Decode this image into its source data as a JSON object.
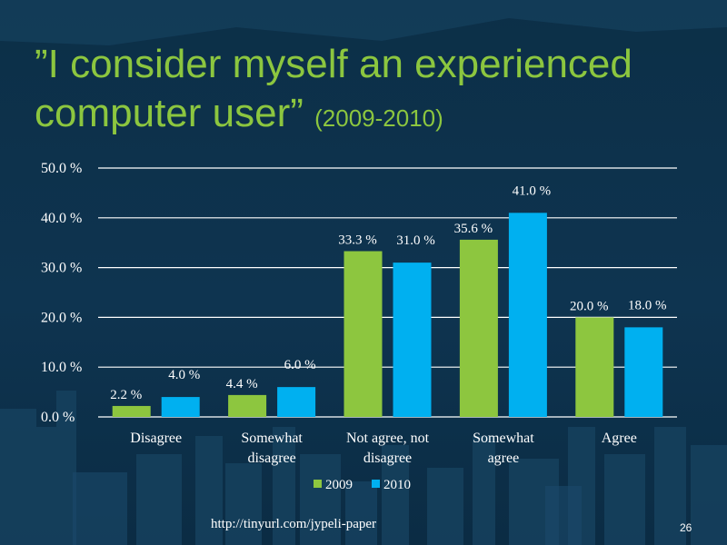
{
  "slide": {
    "title_main": "”I consider myself an experienced computer user”",
    "title_sub": "(2009-2010)",
    "source_link": "http://tinyurl.com/jypeli-paper",
    "page_number": "26"
  },
  "colors": {
    "series_2009": "#8dc63f",
    "series_2010": "#00b0f0",
    "background": "#0e3450",
    "title": "#8cc63f",
    "text": "#ffffff"
  },
  "chart_data": {
    "type": "bar",
    "title": "”I consider myself an experienced computer user” (2009-2010)",
    "xlabel": "",
    "ylabel": "",
    "ylim": [
      0,
      50
    ],
    "yticks": [
      0,
      10,
      20,
      30,
      40,
      50
    ],
    "ytick_labels": [
      "0.0 %",
      "10.0 %",
      "20.0 %",
      "30.0 %",
      "40.0 %",
      "50.0 %"
    ],
    "grid": true,
    "legend_position": "bottom",
    "categories": [
      [
        "Disagree"
      ],
      [
        "Somewhat",
        "disagree"
      ],
      [
        "Not agree, not",
        "disagree"
      ],
      [
        "Somewhat",
        "agree"
      ],
      [
        "Agree"
      ]
    ],
    "series": [
      {
        "name": "2009",
        "values": [
          2.2,
          4.4,
          33.3,
          35.6,
          20.0
        ],
        "labels": [
          "2.2 %",
          "4.4 %",
          "33.3 %",
          "35.6 %",
          "20.0 %"
        ]
      },
      {
        "name": "2010",
        "values": [
          4.0,
          6.0,
          31.0,
          41.0,
          18.0
        ],
        "labels": [
          "4.0 %",
          "6.0 %",
          "31.0 %",
          "41.0 %",
          "18.0 %"
        ]
      }
    ]
  }
}
